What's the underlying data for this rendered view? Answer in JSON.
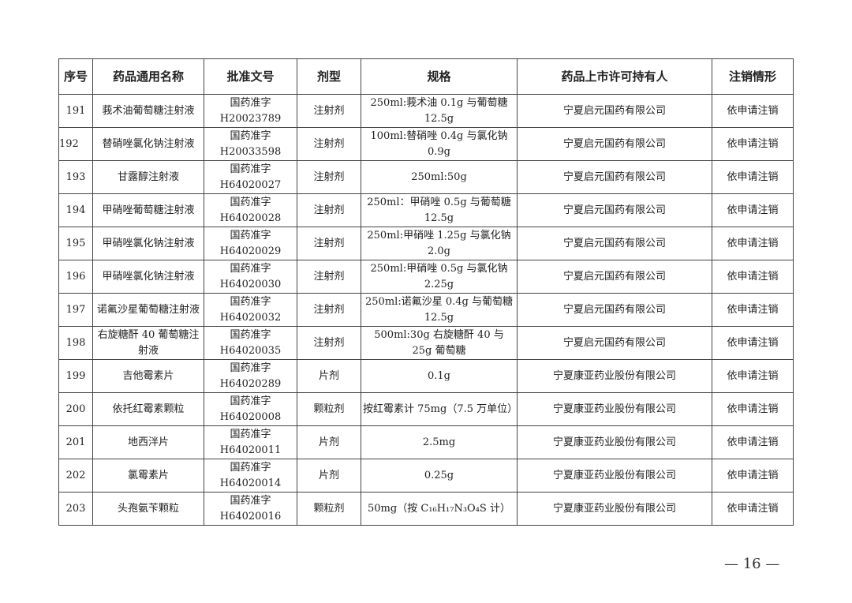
{
  "table": {
    "headers": [
      "序号",
      "药品通用名称",
      "批准文号",
      "剂型",
      "规格",
      "药品上市许可持有人",
      "注销情形"
    ],
    "rows": [
      [
        "191",
        "莪术油葡萄糖注射液",
        "国药准字H20023789",
        "注射剂",
        "250ml:莪术油 0.1g 与葡萄糖 12.5g",
        "宁夏启元国药有限公司",
        "依申请注销"
      ],
      [
        "192",
        "替硝唑氯化钠注射液",
        "国药准字H20033598",
        "注射剂",
        "100ml:替硝唑 0.4g 与氯化钠 0.9g",
        "宁夏启元国药有限公司",
        "依申请注销"
      ],
      [
        "193",
        "甘露醇注射液",
        "国药准字H64020027",
        "注射剂",
        "250ml:50g",
        "宁夏启元国药有限公司",
        "依申请注销"
      ],
      [
        "194",
        "甲硝唑葡萄糖注射液",
        "国药准字H64020028",
        "注射剂",
        "250ml：甲硝唑 0.5g 与葡萄糖 12.5g",
        "宁夏启元国药有限公司",
        "依申请注销"
      ],
      [
        "195",
        "甲硝唑氯化钠注射液",
        "国药准字H64020029",
        "注射剂",
        "250ml:甲硝唑 1.25g 与氯化钠 2.0g",
        "宁夏启元国药有限公司",
        "依申请注销"
      ],
      [
        "196",
        "甲硝唑氯化钠注射液",
        "国药准字H64020030",
        "注射剂",
        "250ml:甲硝唑 0.5g 与氯化钠 2.25g",
        "宁夏启元国药有限公司",
        "依申请注销"
      ],
      [
        "197",
        "诺氟沙星葡萄糖注射液",
        "国药准字H64020032",
        "注射剂",
        "250ml:诺氟沙星 0.4g 与葡萄糖 12.5g",
        "宁夏启元国药有限公司",
        "依申请注销"
      ],
      [
        "198",
        "右旋糖酐 40 葡萄糖注射液",
        "国药准字H64020035",
        "注射剂",
        "500ml:30g 右旋糖酐 40 与 25g 葡萄糖",
        "宁夏启元国药有限公司",
        "依申请注销"
      ],
      [
        "199",
        "吉他霉素片",
        "国药准字H64020289",
        "片剂",
        "0.1g",
        "宁夏康亚药业股份有限公司",
        "依申请注销"
      ],
      [
        "200",
        "依托红霉素颗粒",
        "国药准字H64020008",
        "颗粒剂",
        "按红霉素计 75mg（7.5 万单位）",
        "宁夏康亚药业股份有限公司",
        "依申请注销"
      ],
      [
        "201",
        "地西泮片",
        "国药准字H64020011",
        "片剂",
        "2.5mg",
        "宁夏康亚药业股份有限公司",
        "依申请注销"
      ],
      [
        "202",
        "氯霉素片",
        "国药准字H64020014",
        "片剂",
        "0.25g",
        "宁夏康亚药业股份有限公司",
        "依申请注销"
      ],
      [
        "203",
        "头孢氨苄颗粒",
        "国药准字H64020016",
        "颗粒剂",
        "50mg（按 C₁₆H₁₇N₃O₄S 计）",
        "宁夏康亚药业股份有限公司",
        "依申请注销"
      ]
    ]
  },
  "footer": {
    "page_number": "— 16 —"
  }
}
